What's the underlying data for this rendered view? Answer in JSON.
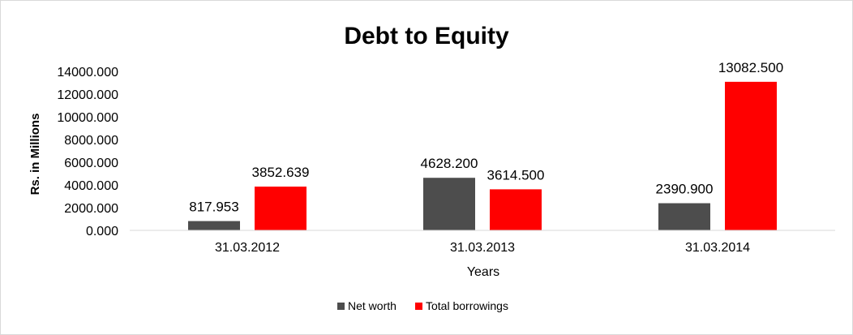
{
  "chart_data": {
    "type": "bar",
    "title": "Debt to Equity",
    "xlabel": "Years",
    "ylabel": "Rs. in Millions",
    "categories": [
      "31.03.2012",
      "31.03.2013",
      "31.03.2014"
    ],
    "series": [
      {
        "name": "Net worth",
        "values": [
          817.953,
          4628.2,
          2390.9
        ],
        "labels": [
          "817.953",
          "4628.200",
          "2390.900"
        ],
        "color": "#4d4d4d"
      },
      {
        "name": "Total borrowings",
        "values": [
          3852.639,
          3614.5,
          13082.5
        ],
        "labels": [
          "3852.639",
          "3614.500",
          "13082.500"
        ],
        "color": "#ff0000"
      }
    ],
    "ylim": [
      0,
      14000
    ],
    "yticks": [
      0,
      2000,
      4000,
      6000,
      8000,
      10000,
      12000,
      14000
    ],
    "ytick_labels": [
      "0.000",
      "2000.000",
      "4000.000",
      "6000.000",
      "8000.000",
      "10000.000",
      "12000.000",
      "14000.000"
    ],
    "grid": false,
    "legend_position": "bottom"
  }
}
